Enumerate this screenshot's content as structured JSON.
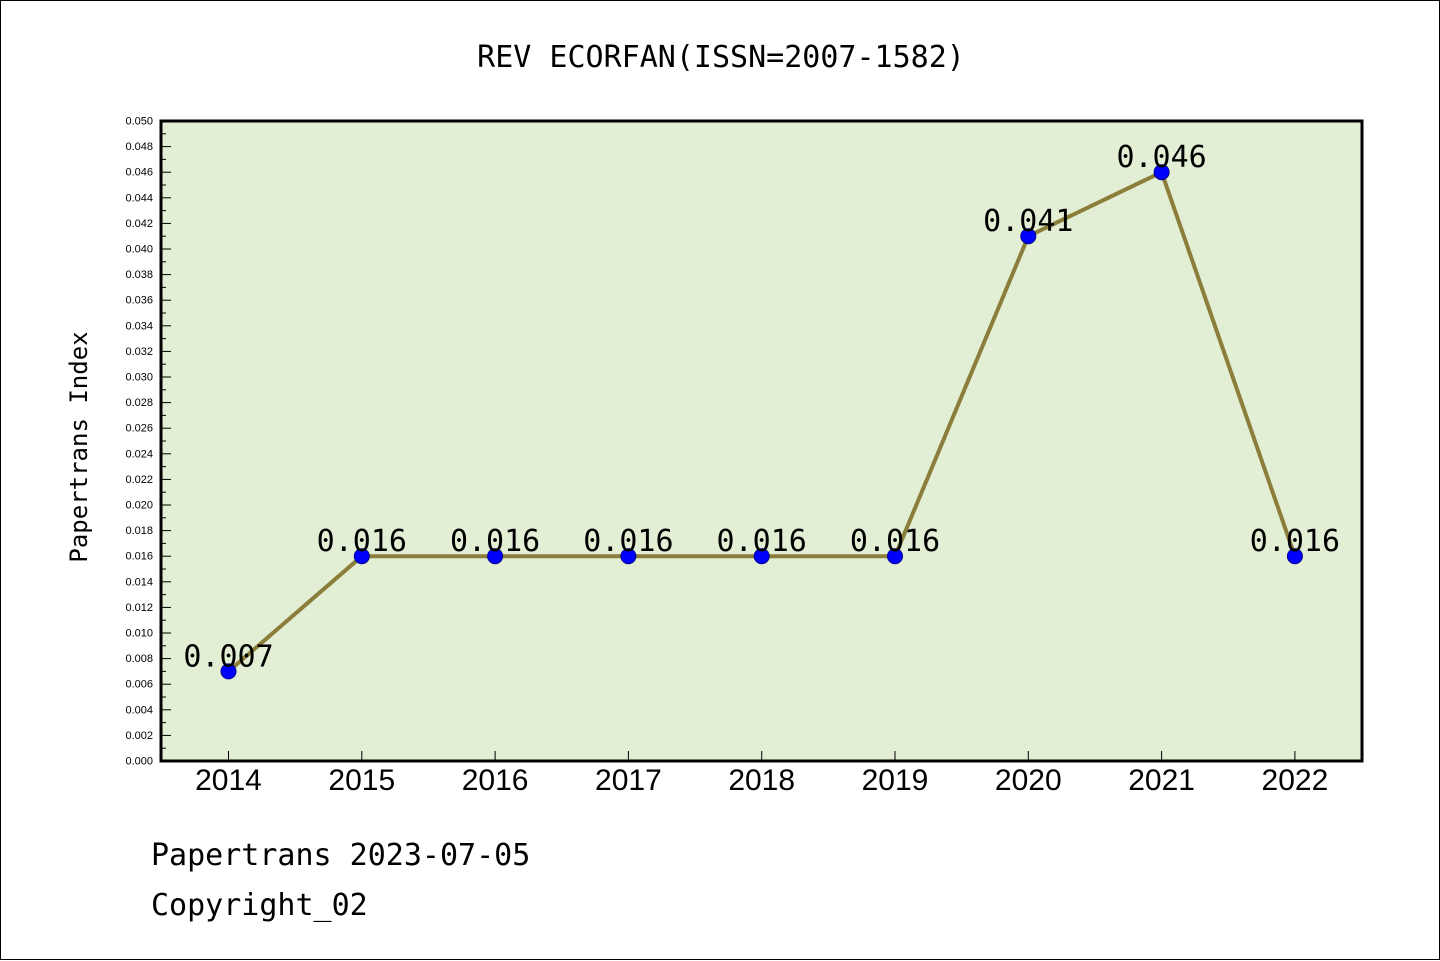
{
  "chart_data": {
    "type": "line",
    "title": "REV ECORFAN(ISSN=2007-1582)",
    "xlabel": "",
    "ylabel": "Papertrans Index",
    "categories": [
      "2014",
      "2015",
      "2016",
      "2017",
      "2018",
      "2019",
      "2020",
      "2021",
      "2022"
    ],
    "values": [
      0.007,
      0.016,
      0.016,
      0.016,
      0.016,
      0.016,
      0.041,
      0.046,
      0.016
    ],
    "data_labels": [
      "0.007",
      "0.016",
      "0.016",
      "0.016",
      "0.016",
      "0.016",
      "0.041",
      "0.046",
      "0.016"
    ],
    "ylim": [
      0,
      0.05
    ],
    "yticks": [
      "0.000",
      "0.002",
      "0.004",
      "0.006",
      "0.008",
      "0.010",
      "0.012",
      "0.014",
      "0.016",
      "0.018",
      "0.020",
      "0.022",
      "0.024",
      "0.026",
      "0.028",
      "0.030",
      "0.032",
      "0.034",
      "0.036",
      "0.038",
      "0.040",
      "0.042",
      "0.044",
      "0.046",
      "0.048",
      "0.050"
    ],
    "grid": false,
    "legend": "none",
    "colors": {
      "line": "#8B7D3A",
      "marker": "#0000FF",
      "plot_bg": "#E2EFD5"
    }
  },
  "footer": {
    "line1": "Papertrans 2023-07-05",
    "line2": "Copyright_02"
  }
}
